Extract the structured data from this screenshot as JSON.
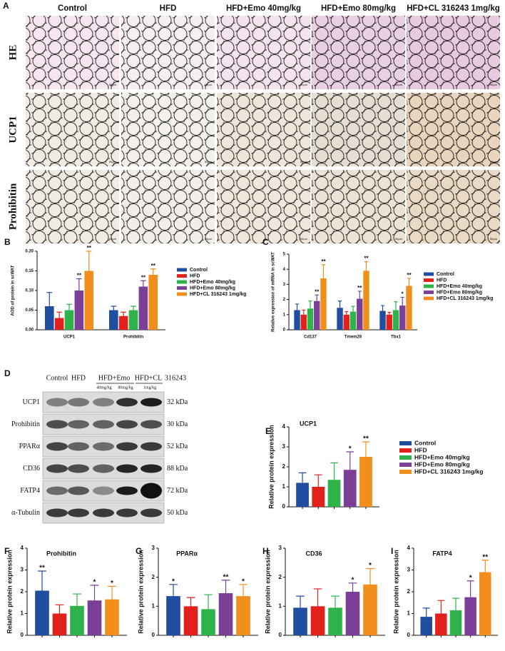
{
  "panel_a": {
    "label": "A",
    "columns": [
      "Control",
      "HFD",
      "HFD+Emo 40mg/kg",
      "HFD+Emo 80mg/kg",
      "HFD+CL 316243 1mg/kg"
    ],
    "rows": [
      "HE",
      "UCP1",
      "Prohibitin"
    ],
    "scale_bar": "50μm"
  },
  "panel_d": {
    "label": "D",
    "lanes": [
      "Control",
      "HFD",
      "HFD+Emo",
      "HFD+CL"
    ],
    "compound": "316243",
    "doses": [
      "40mg/kg",
      "80mg/kg",
      "1mg/kg"
    ],
    "blots": [
      {
        "protein": "UCP1",
        "size": "32 kDa"
      },
      {
        "protein": "Prohibitin",
        "size": "30 kDa"
      },
      {
        "protein": "PPARα",
        "size": "52 kDa"
      },
      {
        "protein": "CD36",
        "size": "88 kDa"
      },
      {
        "protein": "FATP4",
        "size": "72 kDa"
      },
      {
        "protein": "α-Tubulin",
        "size": "50 kDa"
      }
    ]
  },
  "chart_data": [
    {
      "panel": "B",
      "type": "bar",
      "ylabel": "AOD of protein in scWAT",
      "categories": [
        "UCP1",
        "Prohibitin"
      ],
      "ylim": [
        0,
        0.2
      ],
      "yticks": [
        {
          "value": 0,
          "label": "0.00"
        },
        {
          "value": 0.05,
          "label": "0.05"
        },
        {
          "value": 0.1,
          "label": "0.10"
        },
        {
          "value": 0.15,
          "label": "0.15"
        },
        {
          "value": 0.2,
          "label": "0.20"
        }
      ],
      "legend": "right",
      "series": [
        {
          "name": "Control",
          "color": "#1f4ea1",
          "values": [
            0.06,
            0.05
          ],
          "errors": [
            0.035,
            0.01
          ]
        },
        {
          "name": "HFD",
          "color": "#e3211c",
          "values": [
            0.03,
            0.035
          ],
          "errors": [
            0.015,
            0.01
          ]
        },
        {
          "name": "HFD+Emo 40mg/kg",
          "color": "#2db34a",
          "values": [
            0.05,
            0.05
          ],
          "errors": [
            0.015,
            0.01
          ]
        },
        {
          "name": "HFD+Emo 80mg/kg",
          "color": "#7b3f98",
          "values": [
            0.1,
            0.11
          ],
          "errors": [
            0.03,
            0.015
          ],
          "significance": [
            "**",
            "**"
          ]
        },
        {
          "name": "HFD+CL 316243 1mg/kg",
          "color": "#f28e1c",
          "values": [
            0.15,
            0.14
          ],
          "errors": [
            0.05,
            0.015
          ],
          "significance": [
            "**",
            "**"
          ]
        }
      ]
    },
    {
      "panel": "C",
      "type": "bar",
      "ylabel": "Relative expression of mRNA in scWAT",
      "categories": [
        "Cd137",
        "Tmem26",
        "Tbx1"
      ],
      "ylim": [
        0,
        5
      ],
      "yticks": [
        0,
        1,
        2,
        3,
        4,
        5
      ],
      "legend": "right",
      "series": [
        {
          "name": "Control",
          "color": "#1f4ea1",
          "values": [
            1.3,
            1.45,
            1.25
          ],
          "errors": [
            0.4,
            0.45,
            0.35
          ]
        },
        {
          "name": "HFD",
          "color": "#e3211c",
          "values": [
            1.0,
            1.0,
            1.0
          ],
          "errors": [
            0.3,
            0.2,
            0.15
          ]
        },
        {
          "name": "HFD+Emo 40mg/kg",
          "color": "#2db34a",
          "values": [
            1.4,
            1.2,
            1.3
          ],
          "errors": [
            0.5,
            0.35,
            0.55
          ]
        },
        {
          "name": "HFD+Emo 80mg/kg",
          "color": "#7b3f98",
          "values": [
            1.9,
            2.05,
            1.6
          ],
          "errors": [
            0.4,
            0.5,
            0.55
          ],
          "significance": [
            "**",
            "**",
            "*"
          ]
        },
        {
          "name": "HFD+CL 316243 1mg/kg",
          "color": "#f28e1c",
          "values": [
            3.4,
            3.9,
            2.9
          ],
          "errors": [
            0.9,
            0.6,
            0.5
          ],
          "significance": [
            "**",
            "**",
            "**"
          ]
        }
      ]
    },
    {
      "panel": "E",
      "type": "bar",
      "title": "UCP1",
      "ylabel": "Relative protein expression",
      "categories": [
        null
      ],
      "ylim": [
        0,
        4
      ],
      "yticks": [
        0,
        1,
        2,
        3,
        4
      ],
      "legend": "right",
      "series": [
        {
          "name": "Control",
          "color": "#1f4ea1",
          "values": [
            1.2
          ],
          "errors": [
            0.5
          ]
        },
        {
          "name": "HFD",
          "color": "#e3211c",
          "values": [
            1.0
          ],
          "errors": [
            0.6
          ]
        },
        {
          "name": "HFD+Emo 40mg/kg",
          "color": "#2db34a",
          "values": [
            1.35
          ],
          "errors": [
            0.85
          ]
        },
        {
          "name": "HFD+Emo 80mg/kg",
          "color": "#7b3f98",
          "values": [
            1.85
          ],
          "errors": [
            0.9
          ],
          "significance": [
            "*"
          ]
        },
        {
          "name": "HFD+CL 316243 1mg/kg",
          "color": "#f28e1c",
          "values": [
            2.5
          ],
          "errors": [
            0.75
          ],
          "significance": [
            "**"
          ]
        }
      ]
    },
    {
      "panel": "F",
      "type": "bar",
      "title": "Prohibitin",
      "ylabel": "Relative protein expression",
      "categories": [
        null
      ],
      "ylim": [
        0,
        4
      ],
      "yticks": [
        0,
        1,
        2,
        3,
        4
      ],
      "series": [
        {
          "color": "#1f4ea1",
          "values": [
            2.05
          ],
          "errors": [
            0.9
          ],
          "significance": [
            "**"
          ]
        },
        {
          "color": "#e3211c",
          "values": [
            1.0
          ],
          "errors": [
            0.4
          ]
        },
        {
          "color": "#2db34a",
          "values": [
            1.35
          ],
          "errors": [
            0.55
          ]
        },
        {
          "color": "#7b3f98",
          "values": [
            1.6
          ],
          "errors": [
            0.7
          ],
          "significance": [
            "*"
          ]
        },
        {
          "color": "#f28e1c",
          "values": [
            1.65
          ],
          "errors": [
            0.6
          ],
          "significance": [
            "*"
          ]
        }
      ]
    },
    {
      "panel": "G",
      "type": "bar",
      "title": "PPARα",
      "ylabel": "Relative protein expression",
      "categories": [
        null
      ],
      "ylim": [
        0,
        3
      ],
      "yticks": [
        0,
        1,
        2,
        3
      ],
      "series": [
        {
          "color": "#1f4ea1",
          "values": [
            1.35
          ],
          "errors": [
            0.4
          ],
          "significance": [
            "*"
          ]
        },
        {
          "color": "#e3211c",
          "values": [
            1.0
          ],
          "errors": [
            0.3
          ]
        },
        {
          "color": "#2db34a",
          "values": [
            0.9
          ],
          "errors": [
            0.5
          ]
        },
        {
          "color": "#7b3f98",
          "values": [
            1.45
          ],
          "errors": [
            0.45
          ],
          "significance": [
            "**"
          ]
        },
        {
          "color": "#f28e1c",
          "values": [
            1.35
          ],
          "errors": [
            0.4
          ],
          "significance": [
            "*"
          ]
        }
      ]
    },
    {
      "panel": "H",
      "type": "bar",
      "title": "CD36",
      "ylabel": "Relative protein expression",
      "categories": [
        null
      ],
      "ylim": [
        0,
        3
      ],
      "yticks": [
        0,
        1,
        2,
        3
      ],
      "series": [
        {
          "color": "#1f4ea1",
          "values": [
            0.95
          ],
          "errors": [
            0.4
          ]
        },
        {
          "color": "#e3211c",
          "values": [
            1.0
          ],
          "errors": [
            0.6
          ]
        },
        {
          "color": "#2db34a",
          "values": [
            0.95
          ],
          "errors": [
            0.4
          ]
        },
        {
          "color": "#7b3f98",
          "values": [
            1.5
          ],
          "errors": [
            0.3
          ],
          "significance": [
            "*"
          ]
        },
        {
          "color": "#f28e1c",
          "values": [
            1.75
          ],
          "errors": [
            0.55
          ],
          "significance": [
            "*"
          ]
        }
      ]
    },
    {
      "panel": "I",
      "type": "bar",
      "title": "FATP4",
      "ylabel": "Relative protein expression",
      "categories": [
        null
      ],
      "ylim": [
        0,
        4
      ],
      "yticks": [
        0,
        1,
        2,
        3,
        4
      ],
      "series": [
        {
          "color": "#1f4ea1",
          "values": [
            0.85
          ],
          "errors": [
            0.4
          ]
        },
        {
          "color": "#e3211c",
          "values": [
            1.0
          ],
          "errors": [
            0.6
          ]
        },
        {
          "color": "#2db34a",
          "values": [
            1.15
          ],
          "errors": [
            0.55
          ]
        },
        {
          "color": "#7b3f98",
          "values": [
            1.75
          ],
          "errors": [
            0.75
          ],
          "significance": [
            "*"
          ]
        },
        {
          "color": "#f28e1c",
          "values": [
            2.9
          ],
          "errors": [
            0.55
          ],
          "significance": [
            "**"
          ]
        }
      ]
    }
  ]
}
